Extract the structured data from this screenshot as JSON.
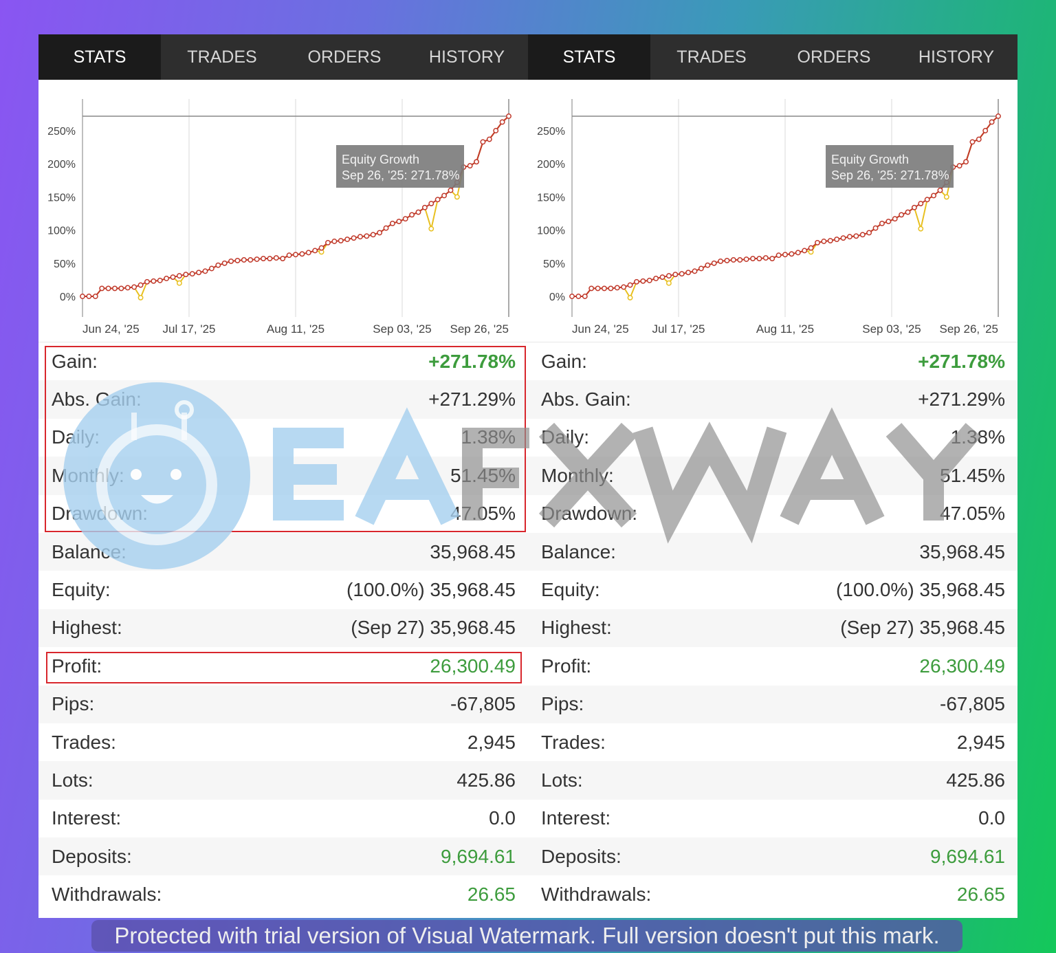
{
  "tabs": [
    {
      "label": "STATS",
      "active": true
    },
    {
      "label": "TRADES",
      "active": false
    },
    {
      "label": "ORDERS",
      "active": false
    },
    {
      "label": "HISTORY",
      "active": false
    }
  ],
  "tooltip": {
    "title": "Equity Growth",
    "value": "Sep 26, '25: 271.78%"
  },
  "chart_data": {
    "type": "line",
    "title": "",
    "x_tick_labels": [
      "Jun 24, '25",
      "Jul 17, '25",
      "Aug 11, '25",
      "Sep 03, '25",
      "Sep 26, '25"
    ],
    "y_tick_labels": [
      "0%",
      "50%",
      "100%",
      "150%",
      "200%",
      "250%"
    ],
    "y_ticks": [
      0,
      50,
      100,
      150,
      200,
      250
    ],
    "ylim": [
      -25,
      290
    ],
    "grid": "vertical",
    "reference_line": 271.78,
    "series": [
      {
        "name": "Equity Growth",
        "color": "#c0392b",
        "values": [
          0,
          0,
          0,
          12,
          12,
          12,
          12,
          13,
          14,
          17,
          22,
          23,
          24,
          27,
          29,
          31,
          33,
          34,
          36,
          38,
          42,
          47,
          50,
          53,
          54,
          55,
          55,
          56,
          57,
          57,
          58,
          57,
          62,
          63,
          64,
          66,
          69,
          73,
          81,
          83,
          84,
          86,
          88,
          90,
          91,
          93,
          96,
          103,
          110,
          113,
          117,
          123,
          127,
          134,
          140,
          146,
          152,
          160,
          172,
          195,
          197,
          203,
          233,
          237,
          250,
          263,
          271.78
        ]
      },
      {
        "color": "#e8c020",
        "values": [
          0,
          0,
          0,
          12,
          12,
          12,
          12,
          13,
          14,
          -2,
          22,
          23,
          24,
          27,
          29,
          20,
          33,
          34,
          36,
          38,
          42,
          47,
          50,
          53,
          54,
          55,
          55,
          56,
          57,
          57,
          58,
          57,
          62,
          63,
          64,
          66,
          69,
          67,
          81,
          83,
          84,
          86,
          88,
          90,
          91,
          93,
          96,
          103,
          110,
          113,
          117,
          123,
          127,
          134,
          102,
          146,
          152,
          160,
          150,
          195,
          197,
          203,
          233,
          237,
          250,
          263,
          271.78
        ]
      }
    ]
  },
  "stats": [
    {
      "label": "Gain:",
      "value": "+271.78%",
      "color": "green",
      "bold": true
    },
    {
      "label": "Abs. Gain:",
      "value": "+271.29%"
    },
    {
      "label": "Daily:",
      "value": "1.38%"
    },
    {
      "label": "Monthly:",
      "value": "51.45%"
    },
    {
      "label": "Drawdown:",
      "value": "47.05%"
    },
    {
      "label": "Balance:",
      "value": "35,968.45"
    },
    {
      "label": "Equity:",
      "value": "(100.0%) 35,968.45"
    },
    {
      "label": "Highest:",
      "value": "(Sep 27) 35,968.45"
    },
    {
      "label": "Profit:",
      "value": "26,300.49",
      "color": "green"
    },
    {
      "label": "Pips:",
      "value": "-67,805"
    },
    {
      "label": "Trades:",
      "value": "2,945"
    },
    {
      "label": "Lots:",
      "value": "425.86"
    },
    {
      "label": "Interest:",
      "value": "0.0"
    },
    {
      "label": "Deposits:",
      "value": "9,694.61",
      "color": "green"
    },
    {
      "label": "Withdrawals:",
      "value": "26.65",
      "color": "green"
    }
  ],
  "watermark": {
    "logo_text": "EAFXWAY",
    "brand_blue": "#a6d0ef",
    "brand_gray": "#8f8f8f"
  },
  "banner": {
    "text": "Protected with trial version of Visual Watermark. Full version doesn't put this mark."
  }
}
